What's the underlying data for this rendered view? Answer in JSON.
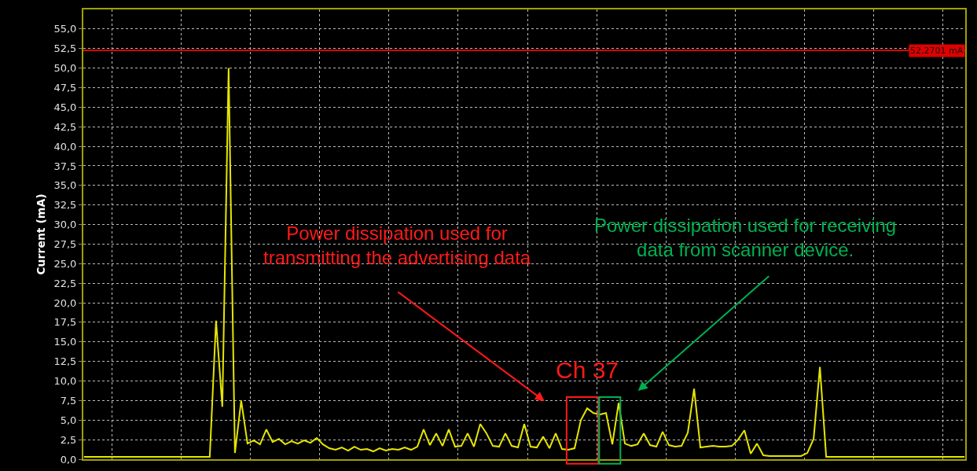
{
  "chart_data": {
    "type": "line",
    "ylabel": "Current (mA)",
    "categories": [
      null,
      null,
      null,
      null,
      null,
      null,
      null,
      null,
      null,
      null,
      null,
      null,
      null,
      null,
      null,
      null,
      null,
      null,
      null,
      null,
      null,
      null,
      null,
      null,
      null,
      null,
      null,
      null,
      null,
      null,
      null,
      null,
      null,
      null,
      null,
      null,
      null,
      null,
      null,
      null,
      null,
      null,
      null,
      null,
      null,
      null,
      null,
      null,
      null,
      null,
      null,
      null,
      null,
      null,
      null,
      null,
      null,
      null,
      null,
      null,
      null,
      null,
      null,
      null,
      null,
      null,
      null,
      null,
      null,
      null,
      null,
      null,
      null,
      null,
      null,
      null,
      null,
      null,
      null,
      null,
      null,
      null,
      null,
      null,
      null,
      null,
      null,
      null,
      null,
      null,
      null,
      null,
      null,
      null,
      null,
      null,
      null,
      null,
      null,
      null,
      null,
      null,
      null,
      null,
      null,
      null,
      null,
      null,
      null,
      null,
      null,
      null,
      null,
      null,
      null,
      null,
      null,
      null,
      null,
      null,
      null,
      null,
      null,
      null,
      null,
      null,
      null,
      null,
      null,
      null,
      null,
      null,
      null,
      null,
      null,
      null,
      null,
      null,
      null,
      null,
      null
    ],
    "series": [
      {
        "color": "#e6e600",
        "values": [
          0.3,
          0.3,
          0.3,
          0.3,
          0.3,
          0.3,
          0.3,
          0.3,
          0.3,
          0.3,
          0.3,
          0.3,
          0.3,
          0.3,
          0.3,
          0.3,
          0.3,
          0.3,
          0.3,
          0.3,
          0.3,
          17.7,
          6.7,
          50.0,
          0.8,
          7.5,
          2.0,
          2.4,
          1.9,
          3.8,
          2.2,
          2.6,
          1.9,
          2.3,
          2.0,
          2.4,
          2.1,
          2.7,
          1.9,
          1.4,
          1.2,
          1.5,
          1.1,
          1.6,
          1.2,
          1.3,
          1.0,
          1.4,
          1.1,
          1.3,
          1.2,
          1.5,
          1.2,
          1.6,
          3.8,
          1.8,
          3.3,
          1.7,
          3.8,
          1.6,
          1.7,
          3.3,
          1.6,
          4.5,
          3.3,
          1.7,
          1.6,
          3.3,
          1.7,
          1.5,
          4.5,
          1.6,
          1.5,
          2.9,
          1.4,
          3.3,
          1.3,
          1.2,
          1.4,
          5.0,
          6.5,
          5.9,
          5.7,
          5.9,
          1.9,
          7.2,
          2.0,
          1.7,
          1.9,
          3.3,
          1.8,
          1.6,
          3.5,
          1.8,
          1.6,
          1.7,
          3.4,
          9.0,
          1.5,
          1.6,
          1.7,
          1.6,
          1.6,
          1.7,
          2.5,
          3.7,
          0.7,
          2.0,
          0.5,
          0.4,
          0.4,
          0.4,
          0.4,
          0.4,
          0.4,
          0.8,
          2.6,
          11.8,
          0.3,
          0.3,
          0.3,
          0.3,
          0.3,
          0.3,
          0.3,
          0.3,
          0.3,
          0.3,
          0.3,
          0.3,
          0.3,
          0.3,
          0.3,
          0.3,
          0.3,
          0.3,
          0.3,
          0.3,
          0.3,
          0.3,
          0.3
        ]
      }
    ],
    "ylim": [
      0,
      57.5
    ],
    "yticks": [
      {
        "value": 0,
        "label": "0,0"
      },
      {
        "value": 2.5,
        "label": "2,5"
      },
      {
        "value": 5,
        "label": "5,0"
      },
      {
        "value": 7.5,
        "label": "7,5"
      },
      {
        "value": 10,
        "label": "10,0"
      },
      {
        "value": 12.5,
        "label": "12,5"
      },
      {
        "value": 15,
        "label": "15,0"
      },
      {
        "value": 17.5,
        "label": "17,5"
      },
      {
        "value": 20,
        "label": "20,0"
      },
      {
        "value": 22.5,
        "label": "22,5"
      },
      {
        "value": 25,
        "label": "25,0"
      },
      {
        "value": 27.5,
        "label": "27,5"
      },
      {
        "value": 30,
        "label": "30,0"
      },
      {
        "value": 32.5,
        "label": "32,5"
      },
      {
        "value": 35,
        "label": "35,0"
      },
      {
        "value": 37.5,
        "label": "37,5"
      },
      {
        "value": 40,
        "label": "40,0"
      },
      {
        "value": 42.5,
        "label": "42,5"
      },
      {
        "value": 45,
        "label": "45,0"
      },
      {
        "value": 47.5,
        "label": "47,5"
      },
      {
        "value": 50,
        "label": "50,0"
      },
      {
        "value": 52.5,
        "label": "52,5"
      },
      {
        "value": 55,
        "label": "55,0"
      }
    ],
    "ref_lines": [
      {
        "axis": "y",
        "value": 52.2701,
        "label": "52,2701 mA",
        "color": "#e00000"
      }
    ],
    "annotations": [
      "Power dissipation used for\ntransmitting the advertising data",
      "Power dissipation used for receiving\ndata from scanner device.",
      "Ch 37"
    ],
    "grid": true,
    "tick_labels": "y",
    "marker": "none",
    "line_style": "solid"
  }
}
